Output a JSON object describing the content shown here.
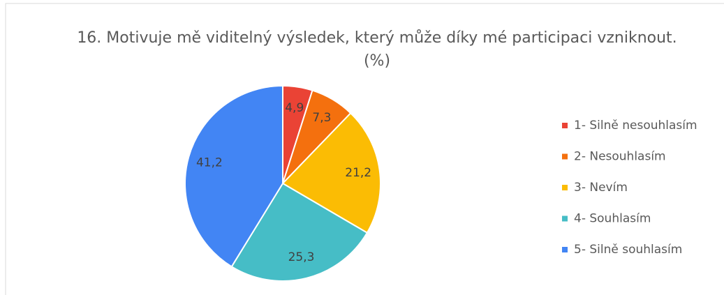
{
  "chart_data": {
    "type": "pie",
    "title": "16. Motivuje mě viditelný výsledek, který může díky mé participaci vzniknout. (%)",
    "categories": [
      "1- Silně nesouhlasím",
      "2- Nesouhlasím",
      "3- Nevím",
      "4- Souhlasím",
      "5- Silně souhlasím"
    ],
    "values": [
      4.9,
      7.3,
      21.2,
      25.3,
      41.2
    ],
    "value_labels": [
      "4,9",
      "7,3",
      "21,2",
      "25,3",
      "41,2"
    ],
    "colors": [
      "#ea4335",
      "#f4700e",
      "#fbbc04",
      "#46bdc6",
      "#4285f4"
    ],
    "legend": "right"
  }
}
